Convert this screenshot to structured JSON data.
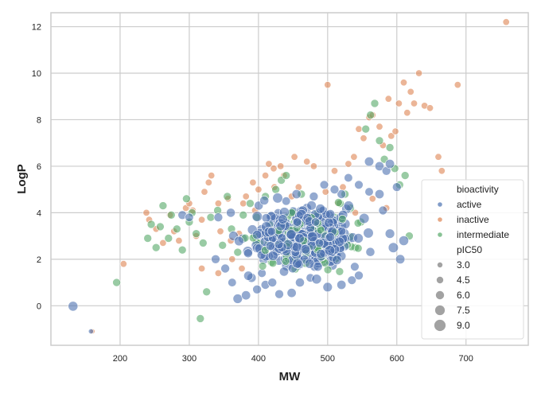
{
  "chart_data": {
    "type": "scatter",
    "title": "",
    "xlabel": "MW",
    "ylabel": "LogP",
    "xlim": [
      100,
      790
    ],
    "ylim": [
      -1.7,
      12.6
    ],
    "xticks": [
      200,
      300,
      400,
      500,
      600,
      700
    ],
    "yticks": [
      0,
      2,
      4,
      6,
      8,
      10,
      12
    ],
    "grid": true,
    "legend": {
      "placement": "bottom-right",
      "hue_title": "bioactivity",
      "size_title": "pIC50",
      "hue_entries": [
        {
          "name": "active",
          "color": "#4c72b0"
        },
        {
          "name": "inactive",
          "color": "#dd8452"
        },
        {
          "name": "intermediate",
          "color": "#55a868"
        }
      ],
      "size_entries": [
        "3.0",
        "4.5",
        "6.0",
        "7.5",
        "9.0"
      ]
    },
    "series": [
      {
        "name": "active",
        "color": "#4c72b0",
        "points": [
          [
            132,
            -0.02,
            7.5
          ],
          [
            158,
            -1.1,
            3.0
          ],
          [
            370,
            0.3,
            7.2
          ],
          [
            382,
            0.45,
            6.8
          ],
          [
            398,
            0.7,
            6.5
          ],
          [
            430,
            0.5,
            6.6
          ],
          [
            448,
            0.55,
            6.9
          ],
          [
            500,
            0.8,
            7.2
          ],
          [
            290,
            3.9,
            6.6
          ],
          [
            300,
            3.8,
            6.2
          ],
          [
            342,
            3.8,
            6.5
          ],
          [
            360,
            4.0,
            6.7
          ],
          [
            352,
            1.6,
            6.5
          ],
          [
            362,
            1.0,
            6.3
          ],
          [
            338,
            2.0,
            6.5
          ],
          [
            560,
            6.2,
            7.0
          ],
          [
            575,
            6.0,
            6.8
          ],
          [
            585,
            5.8,
            6.5
          ],
          [
            590,
            6.1,
            6.9
          ],
          [
            600,
            5.1,
            6.5
          ],
          [
            545,
            5.2,
            6.4
          ],
          [
            530,
            5.5,
            6.3
          ],
          [
            595,
            2.5,
            7.8
          ],
          [
            605,
            2.0,
            7.0
          ],
          [
            590,
            3.1,
            7.2
          ],
          [
            610,
            2.8,
            7.5
          ],
          [
            580,
            4.1,
            6.6
          ],
          [
            575,
            4.8,
            6.9
          ],
          [
            560,
            4.9,
            6.3
          ],
          [
            470,
            4.2,
            7.0
          ],
          [
            480,
            4.7,
            6.5
          ],
          [
            455,
            4.8,
            6.8
          ],
          [
            440,
            4.5,
            6.3
          ],
          [
            520,
            4.8,
            6.6
          ],
          [
            510,
            5.0,
            6.5
          ],
          [
            495,
            5.2,
            6.4
          ],
          [
            410,
            0.9,
            6.6
          ],
          [
            420,
            1.0,
            6.5
          ],
          [
            390,
            1.2,
            6.8
          ],
          [
            405,
            1.4,
            6.3
          ],
          [
            460,
            1.0,
            6.7
          ],
          [
            475,
            1.2,
            6.2
          ],
          [
            520,
            0.9,
            6.9
          ],
          [
            535,
            1.1,
            6.4
          ],
          [
            545,
            1.3,
            6.6
          ]
        ]
      },
      {
        "name": "inactive",
        "color": "#dd8452",
        "points": [
          [
            160,
            -1.1,
            3.0
          ],
          [
            205,
            1.8,
            4.6
          ],
          [
            238,
            4.0,
            4.6
          ],
          [
            242,
            3.7,
            4.5
          ],
          [
            252,
            3.3,
            4.5
          ],
          [
            262,
            2.7,
            4.5
          ],
          [
            272,
            3.9,
            4.5
          ],
          [
            278,
            3.2,
            4.5
          ],
          [
            285,
            2.8,
            4.5
          ],
          [
            295,
            4.2,
            4.5
          ],
          [
            300,
            4.4,
            4.5
          ],
          [
            305,
            4.1,
            4.6
          ],
          [
            310,
            3.0,
            4.5
          ],
          [
            318,
            3.7,
            4.5
          ],
          [
            322,
            4.9,
            4.5
          ],
          [
            328,
            5.3,
            4.5
          ],
          [
            332,
            5.6,
            4.6
          ],
          [
            342,
            4.4,
            4.5
          ],
          [
            345,
            3.2,
            4.5
          ],
          [
            356,
            4.6,
            4.5
          ],
          [
            360,
            2.8,
            4.5
          ],
          [
            372,
            3.1,
            4.5
          ],
          [
            378,
            4.4,
            4.6
          ],
          [
            382,
            4.7,
            4.5
          ],
          [
            392,
            5.3,
            4.6
          ],
          [
            400,
            5.0,
            4.5
          ],
          [
            410,
            5.6,
            4.5
          ],
          [
            415,
            6.1,
            4.6
          ],
          [
            422,
            5.9,
            4.5
          ],
          [
            432,
            6.0,
            4.5
          ],
          [
            448,
            4.7,
            4.6
          ],
          [
            452,
            6.4,
            4.6
          ],
          [
            470,
            6.2,
            4.6
          ],
          [
            480,
            6.0,
            4.6
          ],
          [
            500,
            9.5,
            4.5
          ],
          [
            510,
            5.8,
            4.6
          ],
          [
            522,
            5.1,
            4.5
          ],
          [
            530,
            6.1,
            4.5
          ],
          [
            538,
            6.4,
            4.5
          ],
          [
            545,
            7.6,
            4.6
          ],
          [
            552,
            7.2,
            4.5
          ],
          [
            560,
            8.1,
            4.6
          ],
          [
            565,
            8.2,
            4.5
          ],
          [
            575,
            7.7,
            4.6
          ],
          [
            580,
            6.9,
            4.5
          ],
          [
            588,
            8.9,
            4.6
          ],
          [
            592,
            7.3,
            4.5
          ],
          [
            598,
            7.5,
            4.6
          ],
          [
            603,
            8.7,
            4.6
          ],
          [
            610,
            9.6,
            4.6
          ],
          [
            615,
            8.3,
            4.6
          ],
          [
            620,
            9.2,
            4.5
          ],
          [
            625,
            8.7,
            4.6
          ],
          [
            632,
            10.0,
            4.6
          ],
          [
            640,
            8.6,
            4.5
          ],
          [
            648,
            8.5,
            4.5
          ],
          [
            660,
            6.4,
            4.6
          ],
          [
            665,
            5.8,
            4.5
          ],
          [
            688,
            9.5,
            4.5
          ],
          [
            758,
            12.2,
            4.6
          ],
          [
            318,
            1.6,
            4.5
          ],
          [
            342,
            1.4,
            4.5
          ],
          [
            362,
            2.0,
            4.5
          ],
          [
            376,
            1.6,
            4.5
          ],
          [
            395,
            4.1,
            4.5
          ],
          [
            423,
            5.1,
            4.6
          ],
          [
            437,
            5.6,
            4.5
          ],
          [
            458,
            5.1,
            4.5
          ],
          [
            497,
            4.9,
            4.6
          ],
          [
            515,
            4.4,
            4.5
          ],
          [
            540,
            4.0,
            4.5
          ],
          [
            565,
            4.6,
            4.5
          ],
          [
            585,
            4.2,
            4.5
          ]
        ]
      },
      {
        "name": "intermediate",
        "color": "#55a868",
        "points": [
          [
            195,
            1.0,
            5.8
          ],
          [
            240,
            2.9,
            5.8
          ],
          [
            245,
            3.5,
            5.8
          ],
          [
            252,
            2.5,
            5.8
          ],
          [
            258,
            3.4,
            5.8
          ],
          [
            262,
            4.3,
            5.8
          ],
          [
            270,
            2.9,
            5.8
          ],
          [
            274,
            3.9,
            5.8
          ],
          [
            282,
            3.3,
            5.8
          ],
          [
            290,
            2.4,
            5.8
          ],
          [
            296,
            4.6,
            5.8
          ],
          [
            300,
            3.6,
            5.8
          ],
          [
            304,
            4.0,
            5.8
          ],
          [
            310,
            3.1,
            5.8
          ],
          [
            316,
            -0.55,
            5.8
          ],
          [
            320,
            2.7,
            5.8
          ],
          [
            325,
            0.6,
            5.8
          ],
          [
            331,
            3.8,
            5.8
          ],
          [
            341,
            4.1,
            5.8
          ],
          [
            348,
            2.6,
            5.8
          ],
          [
            355,
            4.7,
            5.8
          ],
          [
            361,
            3.3,
            5.8
          ],
          [
            370,
            2.3,
            5.8
          ],
          [
            378,
            3.9,
            5.8
          ],
          [
            388,
            4.4,
            5.8
          ],
          [
            395,
            3.0,
            5.8
          ],
          [
            402,
            2.7,
            5.8
          ],
          [
            410,
            4.7,
            5.8
          ],
          [
            418,
            3.5,
            5.8
          ],
          [
            425,
            5.0,
            5.8
          ],
          [
            433,
            5.4,
            5.8
          ],
          [
            440,
            5.6,
            5.8
          ],
          [
            448,
            4.0,
            5.8
          ],
          [
            455,
            3.6,
            5.8
          ],
          [
            462,
            4.8,
            5.8
          ],
          [
            470,
            3.7,
            5.8
          ],
          [
            478,
            3.0,
            5.8
          ],
          [
            486,
            4.0,
            5.8
          ],
          [
            495,
            3.2,
            5.8
          ],
          [
            503,
            2.6,
            5.8
          ],
          [
            510,
            3.8,
            5.8
          ],
          [
            518,
            4.4,
            5.8
          ],
          [
            525,
            4.8,
            5.8
          ],
          [
            533,
            4.2,
            5.8
          ],
          [
            540,
            2.5,
            5.8
          ],
          [
            548,
            3.6,
            5.8
          ],
          [
            555,
            7.6,
            5.8
          ],
          [
            562,
            8.2,
            5.8
          ],
          [
            568,
            8.7,
            5.8
          ],
          [
            575,
            7.1,
            5.8
          ],
          [
            582,
            6.3,
            5.8
          ],
          [
            590,
            6.8,
            5.8
          ],
          [
            597,
            5.9,
            5.8
          ],
          [
            604,
            5.2,
            5.8
          ],
          [
            612,
            5.6,
            5.8
          ],
          [
            618,
            3.0,
            5.8
          ]
        ]
      }
    ]
  }
}
